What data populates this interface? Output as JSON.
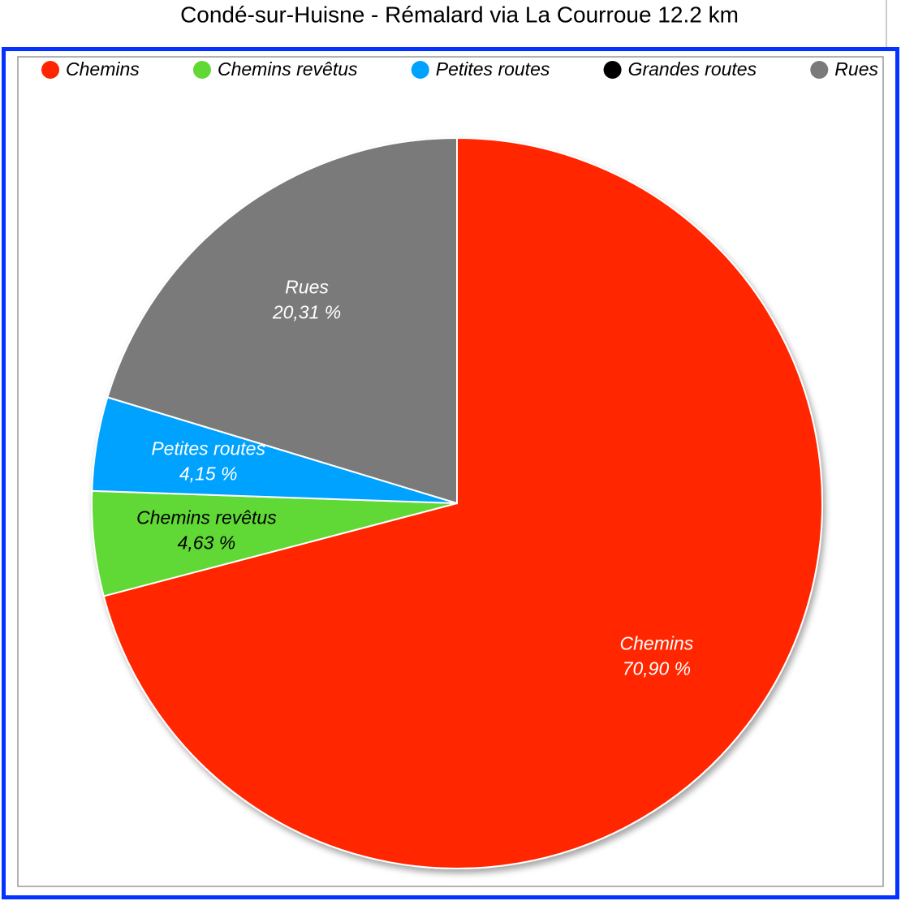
{
  "chart_data": {
    "type": "pie",
    "title": "Condé-sur-Huisne - Rémalard via La Courroue 12.2 km",
    "categories": [
      "Chemins",
      "Chemins revêtus",
      "Petites routes",
      "Grandes routes",
      "Rues"
    ],
    "values": [
      70.9,
      4.63,
      4.15,
      0,
      20.31
    ],
    "value_labels": [
      "70,90 %",
      "4,63 %",
      "4,15 %",
      null,
      "20,31 %"
    ],
    "colors": [
      "#ff2500",
      "#61d836",
      "#00a2ff",
      "#000000",
      "#7a7a7a"
    ],
    "legend": "top"
  }
}
